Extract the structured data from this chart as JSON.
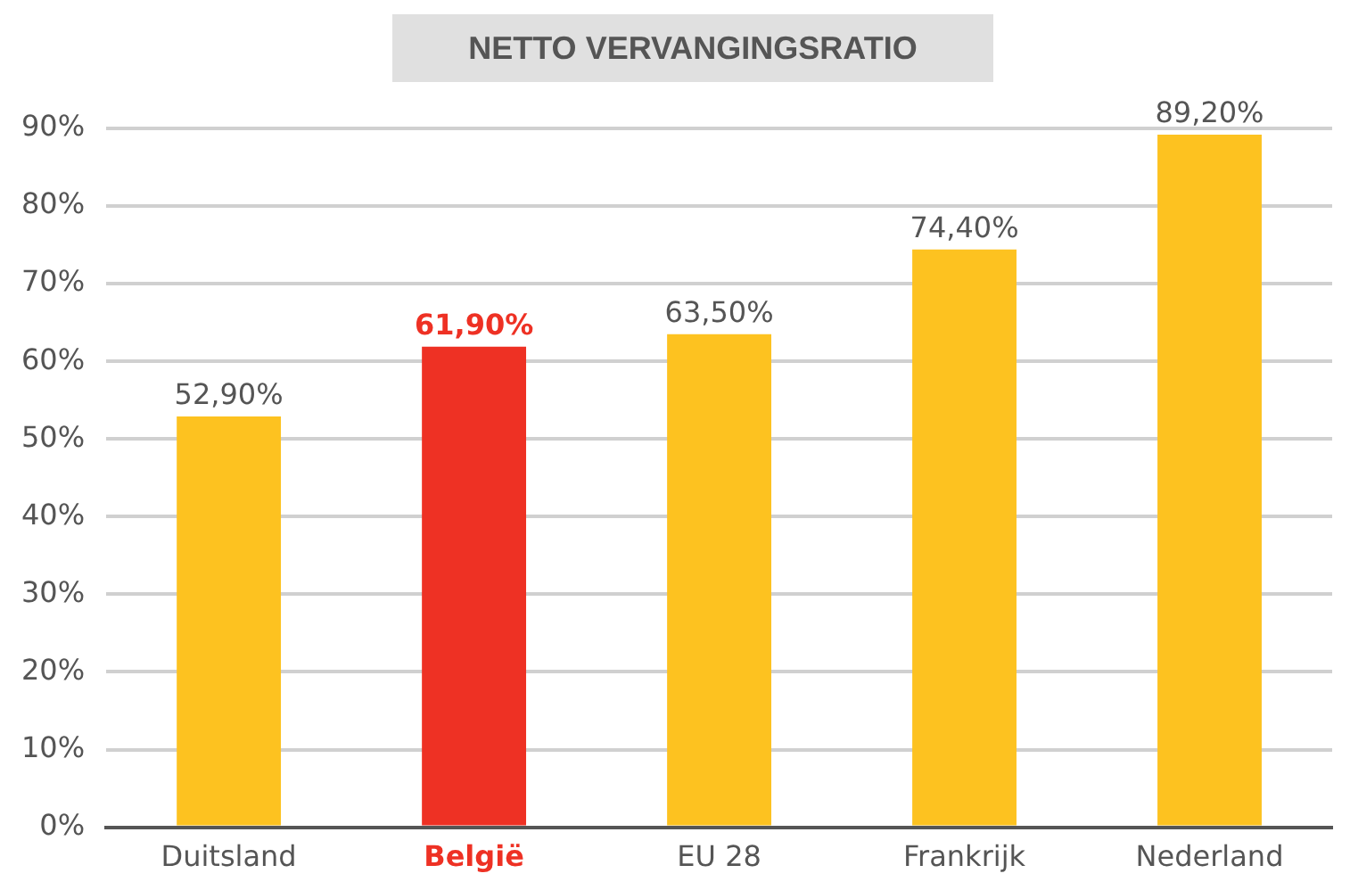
{
  "chart_data": {
    "type": "bar",
    "title": "NETTO VERVANGINGSRATIO",
    "categories": [
      "Duitsland",
      "België",
      "EU 28",
      "Frankrijk",
      "Nederland"
    ],
    "values": [
      52.9,
      61.9,
      63.5,
      74.4,
      89.2
    ],
    "value_labels": [
      "52,90%",
      "61,90%",
      "63,50%",
      "74,40%",
      "89,20%"
    ],
    "colors": [
      "#fdc220",
      "#ee3124",
      "#fdc220",
      "#fdc220",
      "#fdc220"
    ],
    "ylim": [
      0,
      90
    ],
    "yticks": [
      {
        "value": 0,
        "label": "0%"
      },
      {
        "value": 10,
        "label": "10%"
      },
      {
        "value": 20,
        "label": "20%"
      },
      {
        "value": 30,
        "label": "30%"
      },
      {
        "value": 40,
        "label": "40%"
      },
      {
        "value": 50,
        "label": "50%"
      },
      {
        "value": 60,
        "label": "60%"
      },
      {
        "value": 70,
        "label": "70%"
      },
      {
        "value": 80,
        "label": "80%"
      },
      {
        "value": 90,
        "label": "90%"
      }
    ],
    "grid": "y",
    "legend": false
  }
}
